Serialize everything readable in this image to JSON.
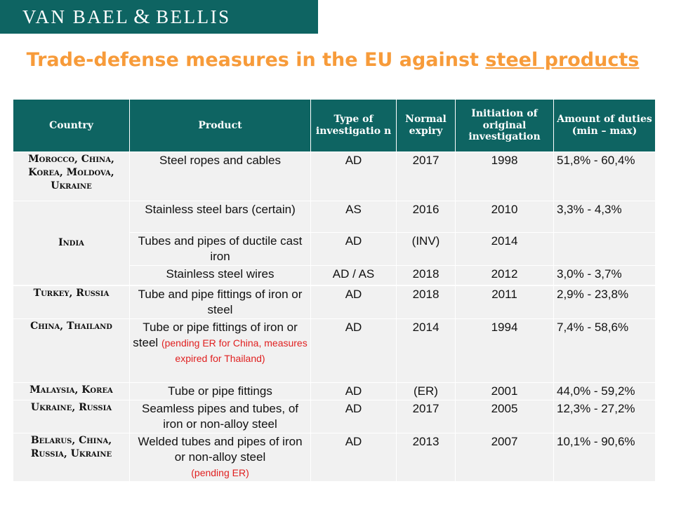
{
  "logo": {
    "part1": "VAN BAEL",
    "amp": "&",
    "part2": "BELLIS"
  },
  "title": {
    "prefix": "Trade-defense measures in the EU against ",
    "underlined": "steel products"
  },
  "columns": [
    "Country",
    "Product",
    "Type of investigatio n",
    "Normal expiry",
    "Initiation of original investigation",
    "Amount of duties\n(min – max)"
  ],
  "rows": [
    {
      "country": "Morocco, China, Korea, Moldova, Ukraine",
      "product": "Steel ropes and cables",
      "note": "",
      "type": "AD",
      "expiry": "2017",
      "initiation": "1998",
      "duties": "51,8%  - 60,4%"
    },
    {
      "country": "India",
      "product": "Stainless steel bars (certain)",
      "note": "",
      "type": "AS",
      "expiry": "2016",
      "initiation": "2010",
      "duties": "3,3% - 4,3%"
    },
    {
      "country": "",
      "product": "Tubes and pipes of ductile cast iron",
      "note": "",
      "type": "AD",
      "expiry": "(INV)",
      "initiation": "2014",
      "duties": ""
    },
    {
      "country": "",
      "product": "Stainless steel wires",
      "note": "",
      "type": "AD / AS",
      "expiry": "2018",
      "initiation": "2012",
      "duties": "3,0% - 3,7%"
    },
    {
      "country": "Turkey, Russia",
      "product": "Tube and pipe fittings of iron or steel",
      "note": "",
      "type": "AD",
      "expiry": "2018",
      "initiation": "2011",
      "duties": "2,9% - 23,8%"
    },
    {
      "country": "China, Thailand",
      "product": "Tube or pipe fittings of iron or steel",
      "note": "(pending ER for China, measures expired for Thailand)",
      "type": "AD",
      "expiry": "2014",
      "initiation": "1994",
      "duties": "7,4% - 58,6%"
    },
    {
      "country": "Malaysia, Korea",
      "product": "Tube or pipe fittings",
      "note": "",
      "type": "AD",
      "expiry": "(ER)",
      "initiation": "2001",
      "duties": "44,0% - 59,2%"
    },
    {
      "country": "Ukraine, Russia",
      "product": "Seamless pipes and tubes, of iron or non-alloy steel",
      "note": "",
      "type": "AD",
      "expiry": "2017",
      "initiation": "2005",
      "duties": "12,3% - 27,2%"
    },
    {
      "country": "Belarus, China, Russia, Ukraine",
      "product": "Welded tubes and pipes of iron or non-alloy steel",
      "note": "(pending ER)",
      "type": "AD",
      "expiry": "2013",
      "initiation": "2007",
      "duties": "10,1% - 90,6%"
    }
  ],
  "colors": {
    "header_bg": "#0e6462",
    "title": "#f79b3a",
    "highlight": "#e02020",
    "cell_bg": "#f1f1f1"
  }
}
